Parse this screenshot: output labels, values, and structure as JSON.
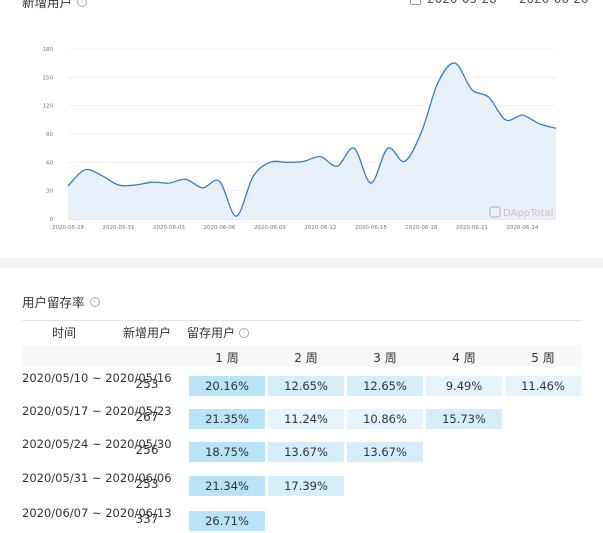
{
  "chart_card": {
    "title": "新增用户",
    "date_start": "2020-05-28",
    "date_sep": "~",
    "date_end": "2020-06-26"
  },
  "chart_data": {
    "type": "area",
    "title": "",
    "xlabel": "",
    "ylabel": "",
    "ylim": [
      0,
      180
    ],
    "y_ticks": [
      0,
      30,
      60,
      90,
      120,
      150,
      180
    ],
    "x_tick_labels": [
      "2020-05-28",
      "2020-05-31",
      "2020-06-03",
      "2020-06-06",
      "2020-06-09",
      "2020-06-12",
      "2020-06-15",
      "2020-06-18",
      "2020-06-21",
      "2020-06-24"
    ],
    "x": [
      "05-28",
      "05-29",
      "05-30",
      "05-31",
      "06-01",
      "06-02",
      "06-03",
      "06-04",
      "06-05",
      "06-06",
      "06-07",
      "06-08",
      "06-09",
      "06-10",
      "06-11",
      "06-12",
      "06-13",
      "06-14",
      "06-15",
      "06-16",
      "06-17",
      "06-18",
      "06-19",
      "06-20",
      "06-21",
      "06-22",
      "06-23",
      "06-24",
      "06-25",
      "06-26"
    ],
    "values": [
      35,
      52,
      46,
      36,
      36,
      39,
      38,
      42,
      33,
      40,
      3,
      45,
      60,
      60,
      61,
      66,
      56,
      75,
      38,
      75,
      61,
      92,
      145,
      165,
      137,
      129,
      105,
      110,
      101,
      96
    ],
    "color": "#2f7fd0",
    "fill": "#e8f0fa",
    "grid": true,
    "watermark": "DAppTotal"
  },
  "retention": {
    "title": "用户留存率",
    "headers": {
      "time": "时间",
      "new_users": "新增用户",
      "retained": "留存用户"
    },
    "weeks": [
      "1 周",
      "2 周",
      "3 周",
      "4 周",
      "5 周"
    ],
    "rows": [
      {
        "range": "2020/05/10 ~ 2020/05/16",
        "new": "253",
        "rates": [
          "20.16%",
          "12.65%",
          "12.65%",
          "9.49%",
          "11.46%"
        ],
        "levels": [
          20.16,
          12.65,
          12.65,
          9.49,
          11.46
        ]
      },
      {
        "range": "2020/05/17 ~ 2020/05/23",
        "new": "267",
        "rates": [
          "21.35%",
          "11.24%",
          "10.86%",
          "15.73%"
        ],
        "levels": [
          21.35,
          11.24,
          10.86,
          15.73
        ]
      },
      {
        "range": "2020/05/24 ~ 2020/05/30",
        "new": "256",
        "rates": [
          "18.75%",
          "13.67%",
          "13.67%"
        ],
        "levels": [
          18.75,
          13.67,
          13.67
        ]
      },
      {
        "range": "2020/05/31 ~ 2020/06/06",
        "new": "253",
        "rates": [
          "21.34%",
          "17.39%"
        ],
        "levels": [
          21.34,
          17.39
        ]
      },
      {
        "range": "2020/06/07 ~ 2020/06/13",
        "new": "337",
        "rates": [
          "26.71%"
        ],
        "levels": [
          26.71
        ]
      }
    ],
    "cell_colors": {
      "high": "#b9e3f6",
      "mid": "#d4eefa",
      "low": "#e6f5fc"
    }
  }
}
